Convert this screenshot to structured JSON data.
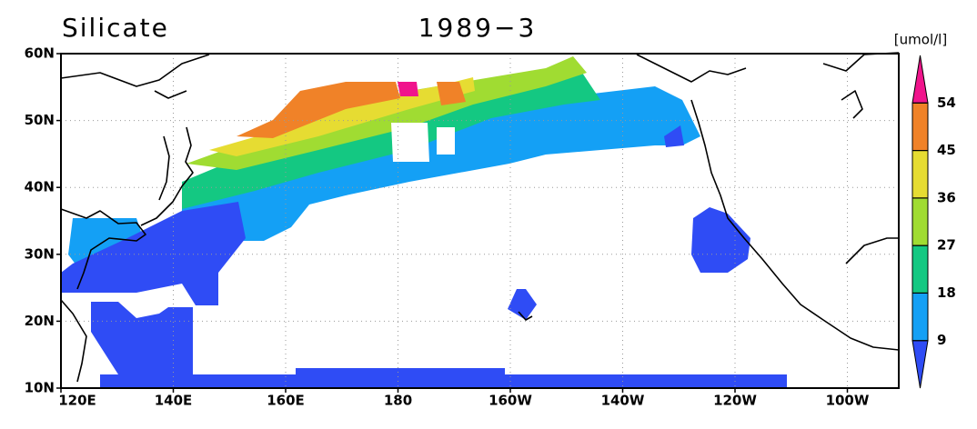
{
  "title": "Silicate",
  "date": "1989−3",
  "axes": {
    "lat_labels": [
      "10N",
      "20N",
      "30N",
      "40N",
      "50N",
      "60N"
    ],
    "lon_labels": [
      "120E",
      "140E",
      "160E",
      "180",
      "160W",
      "140W",
      "120W",
      "100W"
    ]
  },
  "colorbar": {
    "units": "[umol/l]",
    "levels": [
      9,
      18,
      27,
      36,
      45,
      54
    ],
    "colors": [
      "#2f4cf5",
      "#14a0f5",
      "#14c882",
      "#a0dc32",
      "#e6dc32",
      "#f08228",
      "#f0148c"
    ]
  }
}
